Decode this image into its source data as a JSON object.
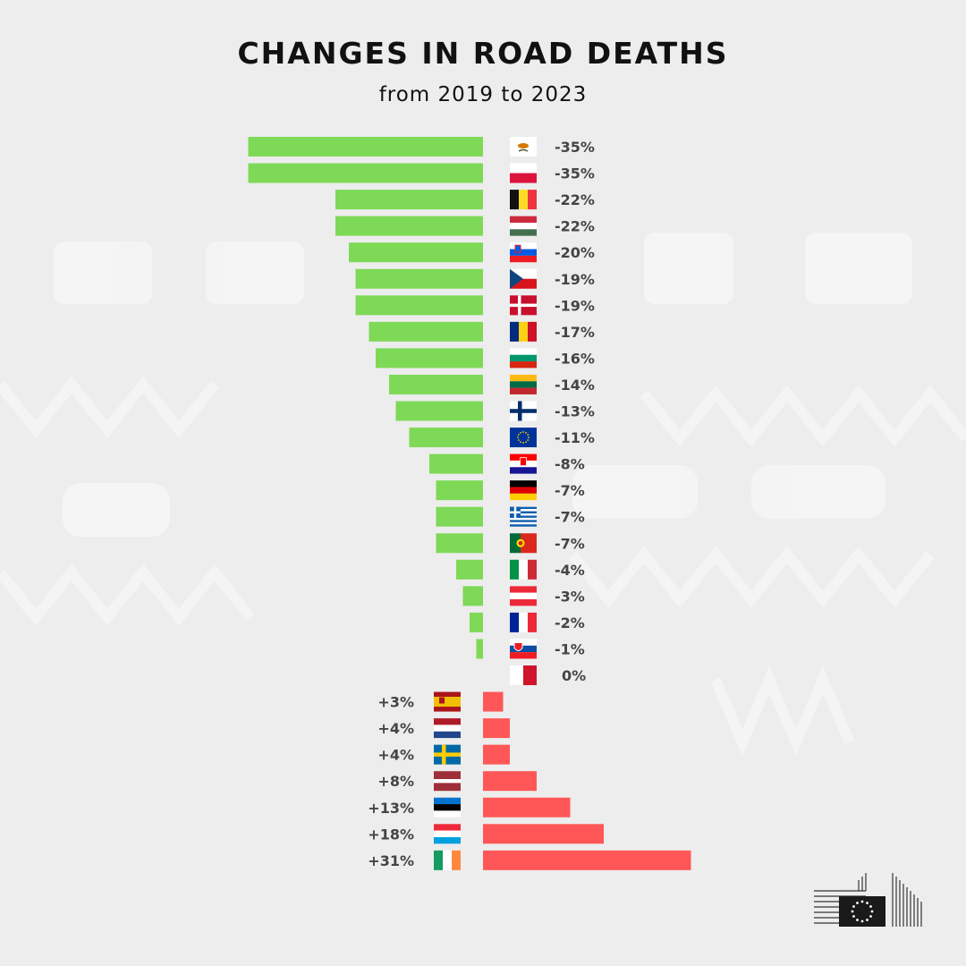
{
  "header": {
    "title": "CHANGES IN ROAD DEATHS",
    "subtitle": "from 2019 to 2023"
  },
  "colors": {
    "decrease": "#7ed957",
    "increase": "#ff5757",
    "background": "#ededed"
  },
  "logo": {
    "name": "european-commission-logo"
  },
  "chart_data": {
    "type": "bar",
    "orientation": "horizontal-diverging",
    "title": "CHANGES IN ROAD DEATHS",
    "subtitle": "from 2019 to 2023",
    "unit": "%",
    "grid": false,
    "legend": "none",
    "categories": [
      "CY",
      "PL",
      "BE",
      "HU",
      "SI",
      "CZ",
      "DK",
      "RO",
      "BG",
      "LT",
      "FI",
      "EU",
      "HR",
      "DE",
      "EL",
      "PT",
      "IT",
      "AT",
      "FR",
      "SK",
      "MT",
      "ES",
      "NL",
      "SE",
      "LV",
      "EE",
      "LU",
      "IE"
    ],
    "values": [
      -35,
      -35,
      -22,
      -22,
      -20,
      -19,
      -19,
      -17,
      -16,
      -14,
      -13,
      -11,
      -8,
      -7,
      -7,
      -7,
      -4,
      -3,
      -2,
      -1,
      0,
      3,
      4,
      4,
      8,
      13,
      18,
      31
    ],
    "labels": [
      "-35%",
      "-35%",
      "-22%",
      "-22%",
      "-20%",
      "-19%",
      "-19%",
      "-17%",
      "-16%",
      "-14%",
      "-13%",
      "-11%",
      "-8%",
      "-7%",
      "-7%",
      "-7%",
      "-4%",
      "-3%",
      "-2%",
      "-1%",
      "0%",
      "+3%",
      "+4%",
      "+4%",
      "+8%",
      "+13%",
      "+18%",
      "+31%"
    ],
    "flag_icons": [
      "cyprus-flag-icon",
      "poland-flag-icon",
      "belgium-flag-icon",
      "hungary-flag-icon",
      "slovenia-flag-icon",
      "czechia-flag-icon",
      "denmark-flag-icon",
      "romania-flag-icon",
      "bulgaria-flag-icon",
      "lithuania-flag-icon",
      "finland-flag-icon",
      "eu-flag-icon",
      "croatia-flag-icon",
      "germany-flag-icon",
      "greece-flag-icon",
      "portugal-flag-icon",
      "italy-flag-icon",
      "austria-flag-icon",
      "france-flag-icon",
      "slovakia-flag-icon",
      "malta-flag-icon",
      "spain-flag-icon",
      "netherlands-flag-icon",
      "sweden-flag-icon",
      "latvia-flag-icon",
      "estonia-flag-icon",
      "luxembourg-flag-icon",
      "ireland-flag-icon"
    ]
  }
}
